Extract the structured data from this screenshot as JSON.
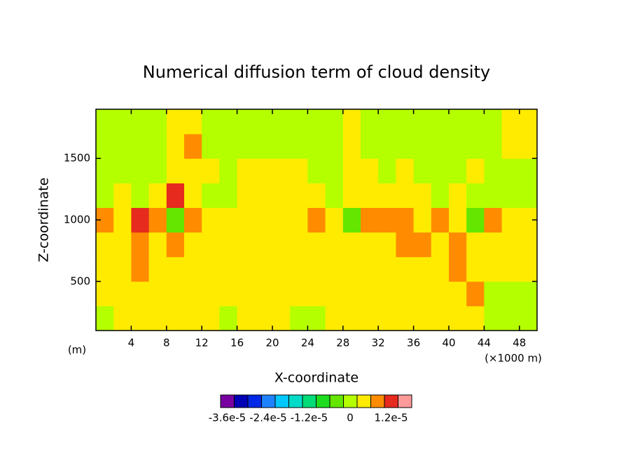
{
  "chart_data": {
    "type": "contour",
    "title": "Numerical diffusion term of cloud density",
    "x_label": "X-coordinate",
    "y_label": "Z-coordinate",
    "x_unit_label": "(×1000 m)",
    "y_unit_label": "(m)",
    "xlim": [
      0,
      50
    ],
    "ylim": [
      100,
      1900
    ],
    "xticks": [
      4,
      8,
      12,
      16,
      20,
      24,
      28,
      32,
      36,
      40,
      44,
      48
    ],
    "yticks": [
      500,
      1000,
      1500
    ],
    "x": [
      1,
      3,
      5,
      7,
      9,
      11,
      13,
      15,
      17,
      19,
      21,
      23,
      25,
      27,
      29,
      31,
      33,
      35,
      37,
      39,
      41,
      43,
      45,
      47,
      49
    ],
    "y": [
      200,
      400,
      600,
      800,
      1000,
      1200,
      1400,
      1600,
      1800
    ],
    "z": [
      [
        -2e-06,
        2e-06,
        2e-06,
        2e-06,
        2e-06,
        2e-06,
        2e-06,
        -2e-06,
        2e-06,
        2e-06,
        2e-06,
        -2e-06,
        -2e-06,
        2e-06,
        2e-06,
        2e-06,
        2e-06,
        2e-06,
        2e-06,
        2e-06,
        2e-06,
        2e-06,
        -2e-06,
        -2e-06,
        -2e-06
      ],
      [
        2e-06,
        2e-06,
        2e-06,
        2e-06,
        2e-06,
        2e-06,
        2e-06,
        2e-06,
        2e-06,
        2e-06,
        2e-06,
        2e-06,
        2e-06,
        2e-06,
        2e-06,
        2e-06,
        2e-06,
        2e-06,
        2e-06,
        2e-06,
        2e-06,
        6e-06,
        -2e-06,
        -2e-06,
        -2e-06
      ],
      [
        2e-06,
        2e-06,
        6e-06,
        2e-06,
        2e-06,
        2e-06,
        2e-06,
        2e-06,
        2e-06,
        2e-06,
        2e-06,
        2e-06,
        2e-06,
        2e-06,
        2e-06,
        2e-06,
        2e-06,
        2e-06,
        2e-06,
        2e-06,
        6e-06,
        2e-06,
        2e-06,
        2e-06,
        2e-06
      ],
      [
        2e-06,
        2e-06,
        6e-06,
        2e-06,
        6e-06,
        2e-06,
        2e-06,
        2e-06,
        2e-06,
        2e-06,
        2e-06,
        2e-06,
        2e-06,
        2e-06,
        2e-06,
        2e-06,
        2e-06,
        6e-06,
        6e-06,
        2e-06,
        6e-06,
        2e-06,
        2e-06,
        2e-06,
        2e-06
      ],
      [
        6e-06,
        2e-06,
        1e-05,
        6e-06,
        -6e-06,
        6e-06,
        2e-06,
        2e-06,
        2e-06,
        2e-06,
        2e-06,
        2e-06,
        6e-06,
        2e-06,
        -6e-06,
        6e-06,
        6e-06,
        6e-06,
        2e-06,
        6e-06,
        2e-06,
        -6e-06,
        6e-06,
        2e-06,
        2e-06
      ],
      [
        -2e-06,
        2e-06,
        -2e-06,
        2e-06,
        1e-05,
        2e-06,
        -2e-06,
        -2e-06,
        2e-06,
        2e-06,
        2e-06,
        2e-06,
        2e-06,
        -2e-06,
        2e-06,
        2e-06,
        2e-06,
        2e-06,
        2e-06,
        -2e-06,
        2e-06,
        -2e-06,
        -2e-06,
        -2e-06,
        -2e-06
      ],
      [
        -2e-06,
        -2e-06,
        -2e-06,
        -2e-06,
        2e-06,
        2e-06,
        2e-06,
        -2e-06,
        2e-06,
        2e-06,
        2e-06,
        2e-06,
        -2e-06,
        -2e-06,
        2e-06,
        2e-06,
        -2e-06,
        2e-06,
        -2e-06,
        -2e-06,
        -2e-06,
        2e-06,
        -2e-06,
        -2e-06,
        -2e-06
      ],
      [
        -2e-06,
        -2e-06,
        -2e-06,
        -2e-06,
        2e-06,
        6e-06,
        -2e-06,
        -2e-06,
        -2e-06,
        -2e-06,
        -2e-06,
        -2e-06,
        -2e-06,
        -2e-06,
        2e-06,
        -2e-06,
        -2e-06,
        -2e-06,
        -2e-06,
        -2e-06,
        -2e-06,
        -2e-06,
        -2e-06,
        2e-06,
        2e-06
      ],
      [
        -2e-06,
        -2e-06,
        -2e-06,
        -2e-06,
        2e-06,
        2e-06,
        -2e-06,
        -2e-06,
        -2e-06,
        -2e-06,
        -2e-06,
        -2e-06,
        -2e-06,
        -2e-06,
        2e-06,
        -2e-06,
        -2e-06,
        -2e-06,
        -2e-06,
        -2e-06,
        -2e-06,
        -2e-06,
        -2e-06,
        2e-06,
        2e-06
      ]
    ],
    "levels": [
      -4e-05,
      -3.6e-05,
      -3.2e-05,
      -2.8e-05,
      -2.4e-05,
      -2e-05,
      -1.6e-05,
      -1.2e-05,
      -8e-06,
      -4e-06,
      0,
      4e-06,
      8e-06,
      1.2e-05,
      1.6e-05
    ],
    "colors": [
      "#7800a0",
      "#0000b4",
      "#0028e6",
      "#1e82ff",
      "#00c8ff",
      "#00dcc8",
      "#00dc78",
      "#1edc1e",
      "#64e600",
      "#b4ff00",
      "#ffeb00",
      "#ff8c00",
      "#e62a1e",
      "#ff9a9a"
    ],
    "colorbar_ticks": [
      {
        "value": -3.6e-05,
        "label": "-3.6e-5"
      },
      {
        "value": -2.4e-05,
        "label": "-2.4e-5"
      },
      {
        "value": -1.2e-05,
        "label": "-1.2e-5"
      },
      0,
      {
        "value": 1.2e-05,
        "label": "1.2e-5"
      }
    ]
  }
}
